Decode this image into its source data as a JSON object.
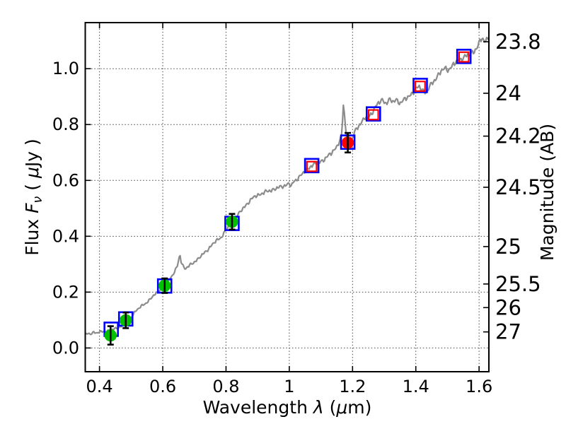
{
  "chart_data": {
    "type": "line",
    "title": "",
    "description": "Spectral energy distribution: model spectrum (gray line), model photometry (blue open squares), observed photometry (red open squares), detections with error bars (green and red filled circles). Left axis flux in microJansky, right axis AB magnitude.",
    "xlabel_parts": [
      {
        "t": "Wavelength  ",
        "i": 0
      },
      {
        "t": "λ",
        "i": 1
      },
      {
        "t": " (",
        "i": 0
      },
      {
        "t": "μ",
        "i": 1
      },
      {
        "t": "m)",
        "i": 0
      }
    ],
    "ylabel_left_parts": [
      {
        "t": "Flux  ",
        "i": 0
      },
      {
        "t": "F",
        "i": 1
      },
      {
        "t": "ν",
        "i": 1,
        "sub": 1
      },
      {
        "t": "  ( ",
        "i": 0
      },
      {
        "t": "μ",
        "i": 1
      },
      {
        "t": "Jy )",
        "i": 0
      }
    ],
    "xlabel": "Wavelength λ (μm)",
    "ylabel_left": "Flux Fν ( μJy )",
    "xlim": [
      0.355,
      1.631
    ],
    "ylim_flux": [
      -0.085,
      1.165
    ],
    "x_ticks": [
      0.4,
      0.6,
      0.8,
      1.0,
      1.2,
      1.4,
      1.6
    ],
    "x_tick_labels": [
      "0.4",
      "0.6",
      "0.8",
      "1",
      "1.2",
      "1.4",
      "1.6"
    ],
    "y_ticks_left": [
      0.0,
      0.2,
      0.4,
      0.6,
      0.8,
      1.0
    ],
    "y_tick_labels_left": [
      "0.0",
      "0.2",
      "0.4",
      "0.6",
      "0.8",
      "1.0"
    ],
    "right_axis": {
      "label": "Magnitude (AB)",
      "ticks": [
        23.8,
        24,
        24.2,
        24.5,
        25,
        25.5,
        26,
        27
      ],
      "tick_labels": [
        "23.8",
        "24",
        "24.2",
        "24.5",
        "25",
        "25.5",
        "26",
        "27"
      ],
      "ab_zeropoint_ujy": 23.9
    },
    "grid": {
      "on": true,
      "style": "dotted",
      "at": "x_ticks and y_ticks_left"
    },
    "legend": {
      "on": false
    },
    "colors": {
      "background": "#ffffff",
      "spectrum": "#8c8c8c",
      "model_square": "#0000ff",
      "observed_square": "#ff0000",
      "detection_green": "#00c000",
      "detection_red": "#ff0000",
      "errorbar": "#000000",
      "grid": "#444444",
      "axis": "#000000"
    },
    "series": [
      {
        "name": "model_spectrum",
        "type": "line",
        "marker": "none",
        "anchors": [
          [
            0.355,
            0.048
          ],
          [
            0.363,
            0.051
          ],
          [
            0.372,
            0.049
          ],
          [
            0.381,
            0.057
          ],
          [
            0.39,
            0.054
          ],
          [
            0.4,
            0.057
          ],
          [
            0.41,
            0.058
          ],
          [
            0.42,
            0.06
          ],
          [
            0.43,
            0.062
          ],
          [
            0.44,
            0.065
          ],
          [
            0.45,
            0.069
          ],
          [
            0.46,
            0.073
          ],
          [
            0.47,
            0.079
          ],
          [
            0.48,
            0.087
          ],
          [
            0.49,
            0.096
          ],
          [
            0.5,
            0.11
          ],
          [
            0.508,
            0.124
          ],
          [
            0.516,
            0.134
          ],
          [
            0.524,
            0.141
          ],
          [
            0.533,
            0.15
          ],
          [
            0.542,
            0.158
          ],
          [
            0.551,
            0.164
          ],
          [
            0.56,
            0.174
          ],
          [
            0.57,
            0.186
          ],
          [
            0.58,
            0.197
          ],
          [
            0.59,
            0.207
          ],
          [
            0.6,
            0.216
          ],
          [
            0.61,
            0.226
          ],
          [
            0.62,
            0.243
          ],
          [
            0.63,
            0.26
          ],
          [
            0.64,
            0.278
          ],
          [
            0.647,
            0.295
          ],
          [
            0.651,
            0.318
          ],
          [
            0.654,
            0.337
          ],
          [
            0.658,
            0.31
          ],
          [
            0.664,
            0.294
          ],
          [
            0.671,
            0.284
          ],
          [
            0.68,
            0.291
          ],
          [
            0.69,
            0.299
          ],
          [
            0.702,
            0.31
          ],
          [
            0.715,
            0.323
          ],
          [
            0.728,
            0.336
          ],
          [
            0.742,
            0.352
          ],
          [
            0.756,
            0.37
          ],
          [
            0.77,
            0.384
          ],
          [
            0.784,
            0.396
          ],
          [
            0.798,
            0.418
          ],
          [
            0.812,
            0.441
          ],
          [
            0.825,
            0.458
          ],
          [
            0.838,
            0.477
          ],
          [
            0.852,
            0.497
          ],
          [
            0.866,
            0.516
          ],
          [
            0.88,
            0.532
          ],
          [
            0.893,
            0.544
          ],
          [
            0.906,
            0.55
          ],
          [
            0.92,
            0.556
          ],
          [
            0.934,
            0.562
          ],
          [
            0.948,
            0.567
          ],
          [
            0.962,
            0.572
          ],
          [
            0.976,
            0.578
          ],
          [
            0.99,
            0.584
          ],
          [
            1.0,
            0.589
          ],
          [
            1.006,
            0.578
          ],
          [
            1.014,
            0.595
          ],
          [
            1.026,
            0.607
          ],
          [
            1.04,
            0.622
          ],
          [
            1.054,
            0.636
          ],
          [
            1.068,
            0.652
          ],
          [
            1.08,
            0.658
          ],
          [
            1.094,
            0.664
          ],
          [
            1.108,
            0.674
          ],
          [
            1.122,
            0.686
          ],
          [
            1.136,
            0.701
          ],
          [
            1.15,
            0.722
          ],
          [
            1.16,
            0.742
          ],
          [
            1.166,
            0.762
          ],
          [
            1.171,
            0.87
          ],
          [
            1.176,
            0.815
          ],
          [
            1.181,
            0.76
          ],
          [
            1.188,
            0.722
          ],
          [
            1.195,
            0.736
          ],
          [
            1.203,
            0.762
          ],
          [
            1.212,
            0.783
          ],
          [
            1.222,
            0.8
          ],
          [
            1.232,
            0.815
          ],
          [
            1.241,
            0.827
          ],
          [
            1.248,
            0.818
          ],
          [
            1.256,
            0.833
          ],
          [
            1.265,
            0.85
          ],
          [
            1.274,
            0.868
          ],
          [
            1.284,
            0.878
          ],
          [
            1.294,
            0.887
          ],
          [
            1.305,
            0.877
          ],
          [
            1.316,
            0.89
          ],
          [
            1.327,
            0.88
          ],
          [
            1.338,
            0.889
          ],
          [
            1.35,
            0.878
          ],
          [
            1.361,
            0.886
          ],
          [
            1.373,
            0.896
          ],
          [
            1.386,
            0.91
          ],
          [
            1.398,
            0.925
          ],
          [
            1.409,
            0.934
          ],
          [
            1.42,
            0.927
          ],
          [
            1.431,
            0.914
          ],
          [
            1.443,
            0.934
          ],
          [
            1.455,
            0.952
          ],
          [
            1.467,
            0.972
          ],
          [
            1.479,
            0.99
          ],
          [
            1.492,
            1.0
          ],
          [
            1.504,
            0.997
          ],
          [
            1.517,
            1.013
          ],
          [
            1.53,
            1.025
          ],
          [
            1.543,
            1.036
          ],
          [
            1.556,
            1.044
          ],
          [
            1.569,
            1.049
          ],
          [
            1.582,
            1.06
          ],
          [
            1.596,
            1.082
          ],
          [
            1.609,
            1.108
          ],
          [
            1.618,
            1.098
          ],
          [
            1.625,
            1.106
          ],
          [
            1.631,
            1.117
          ]
        ],
        "noise": {
          "base_amplitude": 0.0035,
          "flux_scaled_amplitude": 0.007
        }
      },
      {
        "name": "model_photometry_blue_squares",
        "type": "scatter",
        "marker": "open-square-large",
        "points": [
          [
            0.437,
            0.067
          ],
          [
            0.483,
            0.104
          ],
          [
            0.606,
            0.222
          ],
          [
            0.819,
            0.446
          ],
          [
            1.071,
            0.653
          ],
          [
            1.185,
            0.737
          ],
          [
            1.266,
            0.838
          ],
          [
            1.414,
            0.94
          ],
          [
            1.552,
            1.044
          ]
        ]
      },
      {
        "name": "observed_photometry_red_squares",
        "type": "scatter",
        "marker": "open-square-small",
        "points": [
          [
            1.071,
            0.65
          ],
          [
            1.266,
            0.835
          ],
          [
            1.414,
            0.937
          ],
          [
            1.552,
            1.042
          ]
        ]
      },
      {
        "name": "detections_green_circles",
        "type": "scatter",
        "marker": "filled-circle",
        "points": [
          {
            "x": 0.435,
            "y": 0.045,
            "yerr": 0.033
          },
          {
            "x": 0.483,
            "y": 0.099,
            "yerr": 0.028
          },
          {
            "x": 0.606,
            "y": 0.223,
            "yerr": 0.026
          },
          {
            "x": 0.819,
            "y": 0.452,
            "yerr": 0.028
          }
        ]
      },
      {
        "name": "detection_red_circle",
        "type": "scatter",
        "marker": "filled-circle",
        "points": [
          {
            "x": 1.185,
            "y": 0.735,
            "yerr": 0.035
          }
        ]
      }
    ]
  }
}
